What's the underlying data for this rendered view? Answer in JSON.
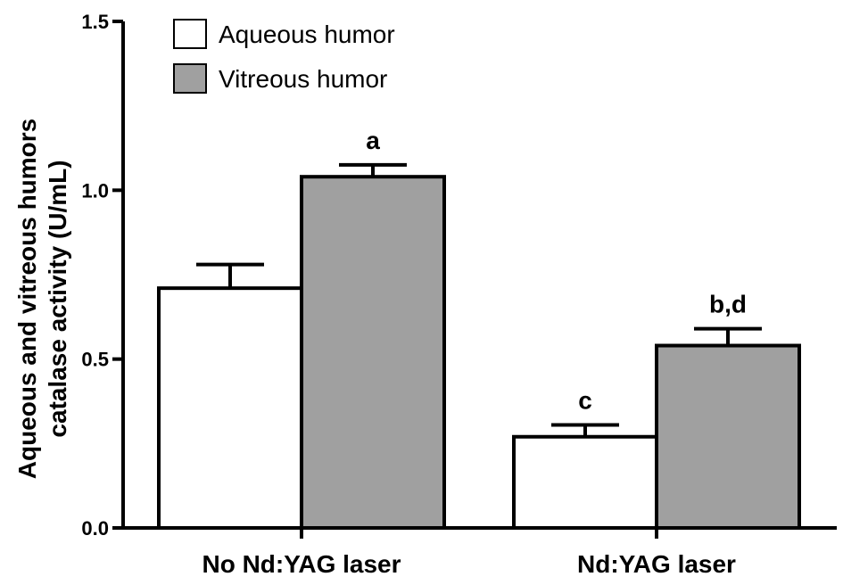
{
  "chart_data": {
    "type": "bar",
    "categories": [
      "No Nd:YAG laser",
      "Nd:YAG laser"
    ],
    "series": [
      {
        "name": "Aqueous humor",
        "values": [
          0.71,
          0.27
        ],
        "errors": [
          0.07,
          0.035
        ],
        "color": "#ffffff"
      },
      {
        "name": "Vitreous humor",
        "values": [
          1.04,
          0.54
        ],
        "errors": [
          0.035,
          0.05
        ],
        "color": "#a0a0a0"
      }
    ],
    "annotations": [
      {
        "text": "a",
        "category": 0,
        "series": 1
      },
      {
        "text": "c",
        "category": 1,
        "series": 0
      },
      {
        "text": "b,d",
        "category": 1,
        "series": 1
      }
    ],
    "ylabel": [
      "Aqueous and vitreous humors",
      "catalase activity (U/mL)"
    ],
    "xlabel": "",
    "ylim": [
      0,
      1.5
    ],
    "yticks": [
      0.0,
      0.5,
      1.0,
      1.5
    ],
    "ytick_labels": [
      "0.0",
      "0.5",
      "1.0",
      "1.5"
    ],
    "grid": false,
    "legend_position": "top-left"
  }
}
